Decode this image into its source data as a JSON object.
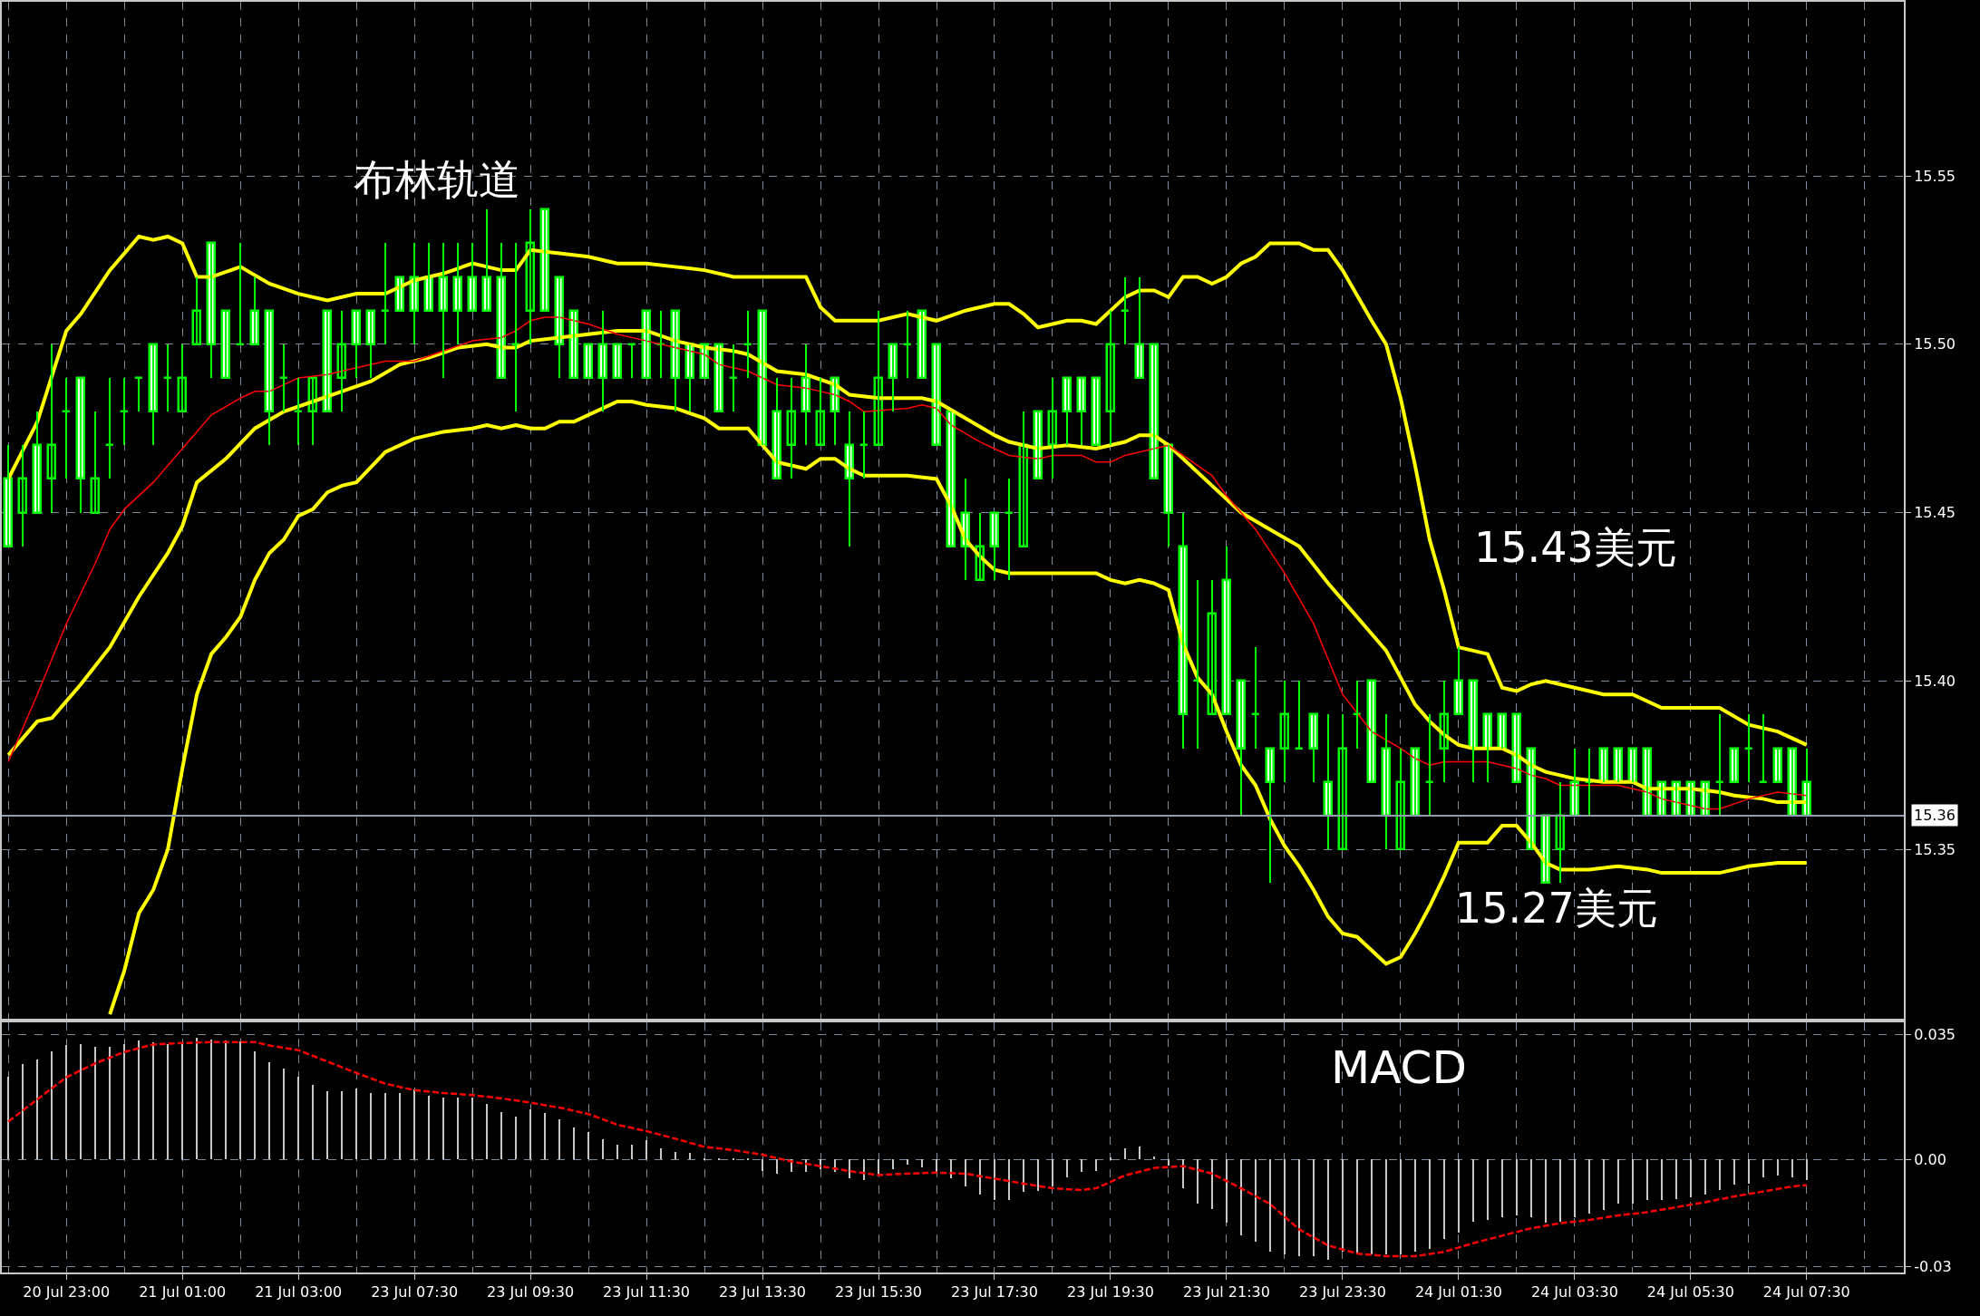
{
  "chart_data": [
    {
      "type": "candlestick",
      "grid": true,
      "tick_labels": "y",
      "categories": [
        null,
        null,
        null,
        null,
        null,
        null,
        null,
        null,
        null,
        null,
        null,
        null,
        null,
        null,
        null,
        null,
        null,
        null,
        null,
        null,
        null,
        null,
        null,
        null,
        null,
        null,
        null,
        null,
        null,
        null,
        null,
        null,
        null,
        null,
        null,
        null,
        null,
        null,
        null,
        null,
        null,
        null,
        null,
        null,
        null,
        null,
        null,
        null,
        null,
        null,
        null,
        null,
        null,
        null,
        null,
        null,
        null,
        null,
        null,
        null,
        null,
        null,
        null,
        null,
        null,
        null,
        null,
        null,
        null,
        null,
        null,
        null,
        null,
        null,
        null,
        null,
        null,
        null,
        null,
        null,
        null,
        null,
        null,
        null,
        null,
        null,
        null,
        null,
        null,
        null,
        null,
        null,
        null,
        null,
        null,
        null,
        null,
        null,
        null,
        null,
        null,
        null,
        null,
        null,
        null,
        null,
        null,
        null,
        null,
        null,
        null,
        null,
        null,
        null,
        null,
        null,
        null,
        null,
        null,
        null,
        null,
        null,
        null,
        null,
        null
      ],
      "color": "#00ff00",
      "ohlc": [
        [
          15.46,
          15.47,
          15.44,
          15.44
        ],
        [
          15.45,
          15.47,
          15.44,
          15.46
        ],
        [
          15.47,
          15.48,
          15.45,
          15.45
        ],
        [
          15.46,
          15.5,
          15.45,
          15.47
        ],
        [
          15.48,
          15.49,
          15.46,
          15.48
        ],
        [
          15.49,
          15.49,
          15.45,
          15.46
        ],
        [
          15.45,
          15.48,
          15.45,
          15.46
        ],
        [
          15.47,
          15.49,
          15.46,
          15.47
        ],
        [
          15.48,
          15.49,
          15.47,
          15.48
        ],
        [
          15.49,
          15.49,
          15.48,
          15.49
        ],
        [
          15.5,
          15.5,
          15.47,
          15.48
        ],
        [
          15.49,
          15.5,
          15.48,
          15.49
        ],
        [
          15.48,
          15.5,
          15.48,
          15.49
        ],
        [
          15.5,
          15.52,
          15.5,
          15.51
        ],
        [
          15.53,
          15.53,
          15.49,
          15.5
        ],
        [
          15.51,
          15.51,
          15.49,
          15.49
        ],
        [
          15.5,
          15.53,
          15.5,
          15.5
        ],
        [
          15.51,
          15.52,
          15.5,
          15.5
        ],
        [
          15.51,
          15.51,
          15.47,
          15.48
        ],
        [
          15.49,
          15.5,
          15.48,
          15.49
        ],
        [
          15.48,
          15.49,
          15.47,
          15.48
        ],
        [
          15.48,
          15.49,
          15.47,
          15.49
        ],
        [
          15.51,
          15.51,
          15.48,
          15.48
        ],
        [
          15.49,
          15.51,
          15.48,
          15.5
        ],
        [
          15.51,
          15.51,
          15.49,
          15.5
        ],
        [
          15.51,
          15.51,
          15.49,
          15.5
        ],
        [
          15.51,
          15.53,
          15.5,
          15.51
        ],
        [
          15.52,
          15.52,
          15.51,
          15.51
        ],
        [
          15.52,
          15.53,
          15.5,
          15.51
        ],
        [
          15.52,
          15.53,
          15.51,
          15.51
        ],
        [
          15.52,
          15.53,
          15.49,
          15.51
        ],
        [
          15.52,
          15.53,
          15.5,
          15.51
        ],
        [
          15.52,
          15.53,
          15.51,
          15.51
        ],
        [
          15.52,
          15.54,
          15.51,
          15.51
        ],
        [
          15.52,
          15.53,
          15.49,
          15.49
        ],
        [
          15.5,
          15.53,
          15.48,
          15.5
        ],
        [
          15.51,
          15.54,
          15.5,
          15.53
        ],
        [
          15.54,
          15.54,
          15.51,
          15.51
        ],
        [
          15.52,
          15.52,
          15.49,
          15.5
        ],
        [
          15.51,
          15.51,
          15.49,
          15.49
        ],
        [
          15.5,
          15.5,
          15.49,
          15.49
        ],
        [
          15.5,
          15.51,
          15.48,
          15.49
        ],
        [
          15.5,
          15.5,
          15.49,
          15.49
        ],
        [
          15.5,
          15.5,
          15.49,
          15.5
        ],
        [
          15.51,
          15.51,
          15.49,
          15.49
        ],
        [
          15.5,
          15.51,
          15.49,
          15.5
        ],
        [
          15.51,
          15.51,
          15.48,
          15.49
        ],
        [
          15.5,
          15.5,
          15.48,
          15.49
        ],
        [
          15.5,
          15.5,
          15.49,
          15.49
        ],
        [
          15.5,
          15.5,
          15.48,
          15.48
        ],
        [
          15.49,
          15.5,
          15.48,
          15.49
        ],
        [
          15.5,
          15.51,
          15.49,
          15.5
        ],
        [
          15.51,
          15.51,
          15.47,
          15.47
        ],
        [
          15.48,
          15.49,
          15.46,
          15.46
        ],
        [
          15.47,
          15.49,
          15.46,
          15.48
        ],
        [
          15.49,
          15.5,
          15.47,
          15.48
        ],
        [
          15.47,
          15.49,
          15.47,
          15.48
        ],
        [
          15.49,
          15.49,
          15.47,
          15.48
        ],
        [
          15.47,
          15.48,
          15.44,
          15.46
        ],
        [
          15.47,
          15.48,
          15.46,
          15.47
        ],
        [
          15.47,
          15.51,
          15.47,
          15.49
        ],
        [
          15.5,
          15.5,
          15.48,
          15.49
        ],
        [
          15.5,
          15.51,
          15.49,
          15.5
        ],
        [
          15.51,
          15.51,
          15.49,
          15.49
        ],
        [
          15.5,
          15.5,
          15.47,
          15.47
        ],
        [
          15.48,
          15.48,
          15.44,
          15.44
        ],
        [
          15.45,
          15.46,
          15.43,
          15.44
        ],
        [
          15.43,
          15.45,
          15.43,
          15.44
        ],
        [
          15.45,
          15.45,
          15.43,
          15.44
        ],
        [
          15.45,
          15.46,
          15.43,
          15.45
        ],
        [
          15.44,
          15.48,
          15.44,
          15.47
        ],
        [
          15.48,
          15.48,
          15.46,
          15.46
        ],
        [
          15.47,
          15.49,
          15.46,
          15.48
        ],
        [
          15.49,
          15.49,
          15.47,
          15.48
        ],
        [
          15.49,
          15.49,
          15.47,
          15.48
        ],
        [
          15.49,
          15.49,
          15.47,
          15.47
        ],
        [
          15.48,
          15.51,
          15.47,
          15.5
        ],
        [
          15.51,
          15.52,
          15.5,
          15.51
        ],
        [
          15.5,
          15.52,
          15.49,
          15.49
        ],
        [
          15.5,
          15.5,
          15.46,
          15.46
        ],
        [
          15.47,
          15.47,
          15.44,
          15.45
        ],
        [
          15.44,
          15.45,
          15.38,
          15.39
        ],
        [
          15.4,
          15.43,
          15.38,
          15.4
        ],
        [
          15.39,
          15.43,
          15.39,
          15.42
        ],
        [
          15.43,
          15.44,
          15.39,
          15.39
        ],
        [
          15.4,
          15.4,
          15.36,
          15.38
        ],
        [
          15.39,
          15.41,
          15.38,
          15.39
        ],
        [
          15.38,
          15.38,
          15.34,
          15.37
        ],
        [
          15.38,
          15.4,
          15.37,
          15.39
        ],
        [
          15.38,
          15.4,
          15.38,
          15.38
        ],
        [
          15.39,
          15.39,
          15.37,
          15.38
        ],
        [
          15.37,
          15.39,
          15.35,
          15.36
        ],
        [
          15.35,
          15.39,
          15.35,
          15.38
        ],
        [
          15.39,
          15.4,
          15.38,
          15.39
        ],
        [
          15.4,
          15.4,
          15.37,
          15.37
        ],
        [
          15.38,
          15.39,
          15.35,
          15.36
        ],
        [
          15.35,
          15.38,
          15.35,
          15.37
        ],
        [
          15.38,
          15.38,
          15.36,
          15.36
        ],
        [
          15.37,
          15.39,
          15.36,
          15.37
        ],
        [
          15.38,
          15.4,
          15.37,
          15.39
        ],
        [
          15.4,
          15.41,
          15.39,
          15.39
        ],
        [
          15.4,
          15.4,
          15.37,
          15.38
        ],
        [
          15.39,
          15.39,
          15.37,
          15.38
        ],
        [
          15.39,
          15.39,
          15.38,
          15.38
        ],
        [
          15.39,
          15.39,
          15.37,
          15.37
        ],
        [
          15.38,
          15.38,
          15.35,
          15.35
        ],
        [
          15.36,
          15.36,
          15.34,
          15.34
        ],
        [
          15.35,
          15.37,
          15.34,
          15.36
        ],
        [
          15.37,
          15.38,
          15.36,
          15.36
        ],
        [
          15.37,
          15.38,
          15.36,
          15.37
        ],
        [
          15.38,
          15.38,
          15.37,
          15.37
        ],
        [
          15.38,
          15.38,
          15.37,
          15.37
        ],
        [
          15.38,
          15.38,
          15.37,
          15.37
        ],
        [
          15.38,
          15.38,
          15.36,
          15.36
        ],
        [
          15.37,
          15.37,
          15.36,
          15.36
        ],
        [
          15.37,
          15.37,
          15.36,
          15.36
        ],
        [
          15.37,
          15.37,
          15.36,
          15.36
        ],
        [
          15.37,
          15.37,
          15.36,
          15.36
        ],
        [
          15.37,
          15.39,
          15.36,
          15.37
        ],
        [
          15.38,
          15.38,
          15.37,
          15.37
        ],
        [
          15.38,
          15.39,
          15.37,
          15.38
        ],
        [
          15.37,
          15.39,
          15.37,
          15.37
        ],
        [
          15.38,
          15.38,
          15.37,
          15.37
        ],
        [
          15.38,
          15.38,
          15.36,
          15.36
        ],
        [
          15.37,
          15.38,
          15.36,
          15.36
        ]
      ],
      "series": [
        {
          "type": "line",
          "color": "#ffff00",
          "values": [
            15.46,
            null,
            15.477,
            null,
            15.504,
            15.509,
            null,
            15.522,
            null,
            15.532,
            15.531,
            15.532,
            15.53,
            15.52,
            15.52,
            null,
            15.523,
            null,
            15.518,
            null,
            15.515,
            null,
            15.513,
            null,
            15.515,
            null,
            15.515,
            null,
            15.519,
            null,
            15.521,
            null,
            15.524,
            null,
            15.522,
            15.522,
            15.528,
            null,
            15.527,
            null,
            15.526,
            null,
            15.524,
            null,
            15.524,
            null,
            15.523,
            null,
            15.522,
            null,
            15.52,
            null,
            15.52,
            null,
            15.52,
            15.52,
            15.511,
            15.507,
            null,
            null,
            15.507,
            null,
            15.509,
            null,
            15.507,
            null,
            15.51,
            null,
            15.512,
            15.512,
            15.509,
            15.505,
            null,
            15.507,
            15.507,
            15.506,
            null,
            15.514,
            15.516,
            15.516,
            15.514,
            15.52,
            15.52,
            15.518,
            15.52,
            15.524,
            15.526,
            15.53,
            null,
            15.53,
            15.528,
            15.528,
            15.522,
            null,
            15.507,
            15.5,
            15.484,
            15.464,
            15.442,
            15.427,
            15.41,
            15.409,
            15.408,
            15.398,
            15.397,
            15.399,
            15.4,
            null,
            15.398,
            null,
            15.396,
            null,
            15.396,
            null,
            15.392,
            null,
            15.392,
            null,
            15.392,
            null,
            15.387,
            null,
            15.385,
            null,
            15.381
          ]
        },
        {
          "type": "line",
          "color": "#ffff00",
          "values": [
            15.378,
            null,
            15.388,
            15.389,
            null,
            15.399,
            null,
            15.41,
            null,
            15.425,
            null,
            15.438,
            15.446,
            15.459,
            null,
            15.466,
            null,
            15.475,
            null,
            15.48,
            null,
            15.483,
            null,
            15.486,
            null,
            15.489,
            null,
            15.494,
            null,
            15.496,
            null,
            15.499,
            null,
            15.5,
            15.499,
            15.499,
            15.501,
            null,
            15.502,
            null,
            15.503,
            null,
            15.504,
            null,
            15.504,
            null,
            15.501,
            null,
            15.499,
            null,
            15.498,
            15.497,
            null,
            15.492,
            null,
            15.491,
            null,
            15.488,
            15.485,
            null,
            15.484,
            null,
            15.484,
            15.484,
            15.483,
            null,
            15.478,
            null,
            15.473,
            15.471,
            null,
            15.469,
            null,
            15.47,
            null,
            15.469,
            null,
            15.471,
            15.473,
            15.473,
            15.47,
            15.466,
            null,
            15.458,
            null,
            15.45,
            null,
            15.445,
            null,
            15.44,
            null,
            15.429,
            null,
            15.419,
            null,
            15.409,
            15.401,
            15.393,
            15.388,
            15.384,
            15.381,
            15.38,
            15.38,
            15.38,
            15.378,
            15.375,
            15.373,
            15.372,
            15.371,
            null,
            15.37,
            null,
            15.37,
            15.368,
            null,
            null,
            15.368,
            null,
            15.367,
            15.366,
            null,
            15.365,
            15.364,
            null,
            15.364
          ]
        },
        {
          "type": "line",
          "color": "#ffff00",
          "values": [
            null,
            null,
            null,
            null,
            null,
            null,
            null,
            15.301,
            15.314,
            15.331,
            15.338,
            15.35,
            15.374,
            15.396,
            15.408,
            15.413,
            15.419,
            15.43,
            15.438,
            15.442,
            15.449,
            15.451,
            15.456,
            15.458,
            15.459,
            null,
            15.468,
            null,
            15.472,
            null,
            15.474,
            null,
            15.475,
            15.476,
            15.475,
            15.476,
            15.475,
            15.475,
            15.477,
            15.477,
            null,
            15.481,
            15.483,
            15.483,
            15.482,
            null,
            15.481,
            null,
            15.478,
            15.475,
            null,
            15.475,
            15.47,
            15.465,
            null,
            15.463,
            15.466,
            15.466,
            15.463,
            15.461,
            null,
            null,
            15.461,
            null,
            15.46,
            15.452,
            15.442,
            15.437,
            15.433,
            15.432,
            null,
            null,
            15.432,
            15.432,
            null,
            15.432,
            15.43,
            15.429,
            15.43,
            15.429,
            15.427,
            15.411,
            15.401,
            15.396,
            15.385,
            15.375,
            15.369,
            15.359,
            15.351,
            15.345,
            15.338,
            15.33,
            15.325,
            15.324,
            15.32,
            15.316,
            15.318,
            15.325,
            15.333,
            15.342,
            15.352,
            15.352,
            15.352,
            15.357,
            15.357,
            15.352,
            15.346,
            15.344,
            null,
            15.344,
            null,
            15.345,
            null,
            15.344,
            15.343,
            null,
            null,
            15.343,
            15.343,
            null,
            15.345,
            null,
            15.346,
            null,
            15.346
          ]
        },
        {
          "type": "line",
          "color": "#ff0000",
          "values": [
            15.376,
            null,
            15.396,
            null,
            15.417,
            null,
            15.435,
            15.445,
            15.451,
            null,
            15.459,
            null,
            15.469,
            null,
            15.479,
            null,
            15.484,
            15.486,
            15.486,
            null,
            15.49,
            null,
            15.491,
            null,
            15.493,
            null,
            15.495,
            null,
            15.495,
            null,
            15.498,
            null,
            15.501,
            null,
            15.502,
            15.504,
            15.507,
            15.508,
            15.508,
            null,
            15.506,
            null,
            15.503,
            null,
            15.501,
            null,
            15.499,
            null,
            15.497,
            15.494,
            null,
            15.492,
            null,
            15.488,
            null,
            15.487,
            null,
            15.485,
            15.483,
            15.48,
            null,
            null,
            15.481,
            15.482,
            15.481,
            15.476,
            null,
            15.471,
            15.469,
            15.467,
            null,
            15.466,
            15.467,
            null,
            15.467,
            15.465,
            15.465,
            15.467,
            null,
            15.469,
            15.47,
            15.467,
            null,
            15.461,
            15.455,
            null,
            15.445,
            null,
            15.432,
            null,
            15.417,
            null,
            15.396,
            null,
            15.385,
            null,
            15.38,
            15.377,
            15.375,
            15.376,
            null,
            15.376,
            15.376,
            null,
            15.374,
            15.372,
            15.371,
            15.369,
            15.369,
            null,
            null,
            15.369,
            null,
            15.367,
            15.365,
            null,
            15.363,
            15.362,
            15.362,
            null,
            15.365,
            null,
            15.367,
            null,
            15.366
          ]
        }
      ],
      "ylim": [
        15.2998,
        15.6017
      ],
      "yticks": [
        {
          "value": 15.35,
          "label": "15.35"
        },
        {
          "value": 15.4,
          "label": "15.40"
        },
        {
          "value": 15.45,
          "label": "15.45"
        },
        {
          "value": 15.5,
          "label": "15.50"
        },
        {
          "value": 15.55,
          "label": "15.55"
        }
      ],
      "ref_lines": [
        {
          "axis": "y",
          "value": 15.36,
          "label": "15.36",
          "color": "#8e9cab"
        }
      ],
      "annotations": [
        "布林轨道",
        "15.43美元",
        "15.27美元"
      ]
    },
    {
      "type": "bar",
      "grid": true,
      "categories": [
        null,
        null,
        null,
        null,
        "20 Jul 23:00",
        null,
        null,
        null,
        null,
        null,
        null,
        null,
        "21 Jul 01:00",
        null,
        null,
        null,
        null,
        null,
        null,
        null,
        "21 Jul 03:00",
        null,
        null,
        null,
        null,
        null,
        null,
        null,
        "23 Jul 07:30",
        null,
        null,
        null,
        null,
        null,
        null,
        null,
        "23 Jul 09:30",
        null,
        null,
        null,
        null,
        null,
        null,
        null,
        "23 Jul 11:30",
        null,
        null,
        null,
        null,
        null,
        null,
        null,
        "23 Jul 13:30",
        null,
        null,
        null,
        null,
        null,
        null,
        null,
        "23 Jul 15:30",
        null,
        null,
        null,
        null,
        null,
        null,
        null,
        "23 Jul 17:30",
        null,
        null,
        null,
        null,
        null,
        null,
        null,
        "23 Jul 19:30",
        null,
        null,
        null,
        null,
        null,
        null,
        null,
        "23 Jul 21:30",
        null,
        null,
        null,
        null,
        null,
        null,
        null,
        "23 Jul 23:30",
        null,
        null,
        null,
        null,
        null,
        null,
        null,
        "24 Jul 01:30",
        null,
        null,
        null,
        null,
        null,
        null,
        null,
        "24 Jul 03:30",
        null,
        null,
        null,
        null,
        null,
        null,
        null,
        "24 Jul 05:30",
        null,
        null,
        null,
        null,
        null,
        null,
        null,
        "24 Jul 07:30"
      ],
      "series": [
        {
          "type": "bar",
          "color": "#c8c8c8",
          "values": [
            0.0231,
            0.0266,
            0.0279,
            0.0302,
            0.032,
            0.0323,
            0.0316,
            0.0316,
            0.0323,
            0.0332,
            0.0329,
            0.0323,
            0.0329,
            0.0341,
            0.0337,
            0.0332,
            0.033,
            0.0302,
            0.0272,
            0.0254,
            0.0231,
            0.021,
            0.019,
            0.019,
            0.0199,
            0.0187,
            0.0187,
            0.0187,
            0.0195,
            0.0178,
            0.0174,
            0.0174,
            0.0174,
            0.0155,
            0.0133,
            0.0119,
            0.0139,
            0.013,
            0.0112,
            0.0089,
            0.0076,
            0.0057,
            0.0041,
            0.0041,
            0.0053,
            0.0032,
            0.0021,
            0.0018,
            0.0004,
            0.0004,
            0.0003,
            0.0002,
            -0.0032,
            -0.0039,
            -0.0036,
            -0.0036,
            -0.0027,
            -0.0036,
            -0.0053,
            -0.0057,
            -0.0044,
            -0.0027,
            -0.0014,
            -0.0023,
            -0.0036,
            -0.0053,
            -0.0075,
            -0.0098,
            -0.0115,
            -0.0115,
            -0.0092,
            -0.0089,
            -0.0075,
            -0.005,
            -0.0036,
            -0.0032,
            0.0005,
            0.003,
            0.0036,
            0.0009,
            -0.0018,
            -0.008,
            -0.0124,
            -0.0139,
            -0.0178,
            -0.0213,
            -0.0231,
            -0.0258,
            -0.0266,
            -0.027,
            -0.027,
            -0.0281,
            -0.0258,
            -0.0263,
            -0.0266,
            -0.0266,
            -0.0266,
            -0.0258,
            -0.0252,
            -0.0222,
            -0.0204,
            -0.0174,
            -0.0169,
            -0.0163,
            -0.0156,
            -0.0163,
            -0.0178,
            -0.0174,
            -0.0163,
            -0.0151,
            -0.0142,
            -0.0124,
            -0.0124,
            -0.0115,
            -0.0115,
            -0.011,
            -0.0107,
            -0.0098,
            -0.0085,
            -0.0071,
            -0.0067,
            -0.005,
            -0.0044,
            -0.005,
            -0.0057
          ]
        },
        {
          "type": "line",
          "color": "#ff0000",
          "line_style": "dashed",
          "values": [
            0.0107,
            null,
            0.0169,
            null,
            0.0231,
            null,
            0.027,
            null,
            0.0302,
            null,
            0.0323,
            null,
            0.0327,
            null,
            0.033,
            null,
            null,
            0.033,
            0.032,
            null,
            0.0307,
            null,
            0.0275,
            null,
            0.0243,
            null,
            0.0213,
            null,
            0.0195,
            null,
            0.0187,
            null,
            0.0181,
            null,
            0.0172,
            null,
            0.016,
            null,
            0.0146,
            null,
            0.0128,
            null,
            0.0098,
            null,
            0.008,
            null,
            0.0059,
            null,
            0.0036,
            null,
            0.0027,
            null,
            0.0014,
            null,
            -0.0005,
            null,
            -0.0018,
            null,
            -0.0032,
            null,
            -0.0043,
            null,
            -0.0039,
            null,
            -0.0036,
            null,
            -0.0039,
            -0.0046,
            -0.0053,
            null,
            -0.0067,
            null,
            -0.008,
            null,
            -0.0085,
            -0.008,
            null,
            -0.0044,
            null,
            -0.0023,
            null,
            -0.0018,
            null,
            -0.0039,
            null,
            -0.008,
            null,
            -0.0124,
            null,
            -0.0195,
            null,
            -0.024,
            null,
            -0.0263,
            null,
            -0.027,
            null,
            -0.027,
            null,
            -0.0258,
            null,
            -0.0234,
            null,
            -0.0213,
            null,
            -0.0192,
            null,
            -0.0178,
            null,
            -0.0169,
            null,
            -0.0156,
            null,
            -0.0147,
            null,
            -0.0133,
            null,
            -0.0119,
            null,
            -0.0103,
            null,
            -0.0089,
            null,
            -0.0075,
            -0.0071
          ]
        }
      ],
      "ylim": [
        -0.0316,
        0.0384
      ],
      "yticks": [
        {
          "value": 0.035,
          "label": "0.035"
        },
        {
          "value": 0,
          "label": "0.00"
        },
        {
          "value": -0.03,
          "label": "-0.03"
        }
      ],
      "annotations": [
        "MACD"
      ]
    }
  ]
}
